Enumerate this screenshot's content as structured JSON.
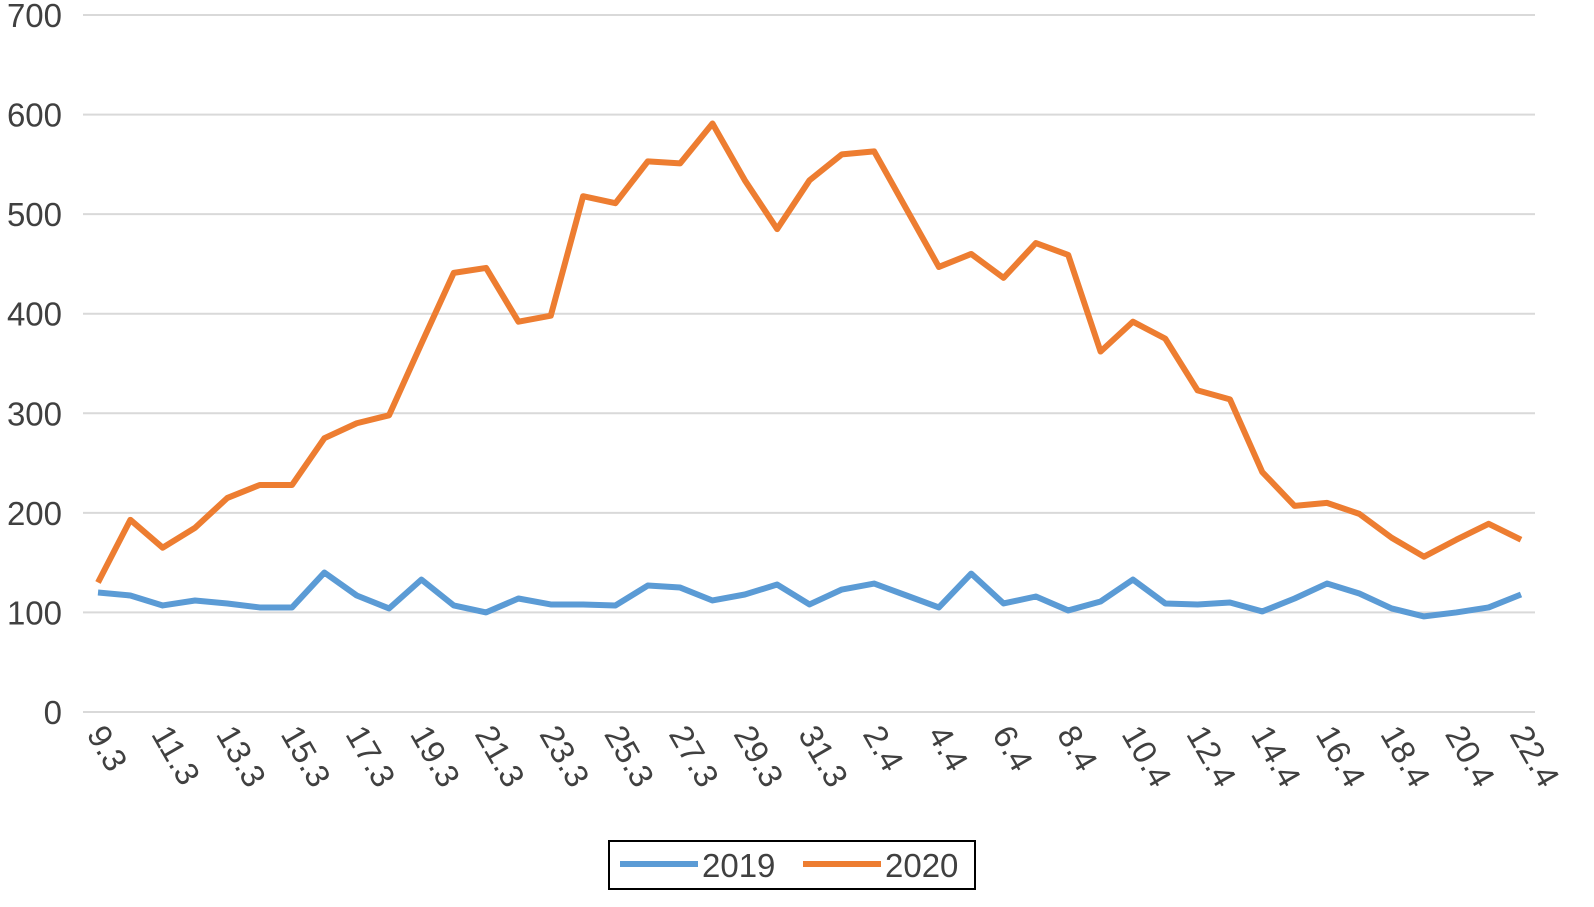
{
  "chart_data": {
    "type": "line",
    "categories": [
      "9.3",
      null,
      "11.3",
      null,
      "13.3",
      null,
      "15.3",
      null,
      "17.3",
      null,
      "19.3",
      null,
      "21.3",
      null,
      "23.3",
      null,
      "25.3",
      null,
      "27.3",
      null,
      "29.3",
      null,
      "31.3",
      null,
      "2.4",
      null,
      "4.4",
      null,
      "6.4",
      null,
      "8.4",
      null,
      "10.4",
      null,
      "12.4",
      null,
      "14.4",
      null,
      "16.4",
      null,
      "18.4",
      null,
      "20.4",
      null,
      "22.4"
    ],
    "series": [
      {
        "name": "2019",
        "color": "#5b9bd5",
        "values": [
          120,
          117,
          107,
          112,
          109,
          105,
          105,
          140,
          117,
          104,
          133,
          107,
          100,
          114,
          108,
          108,
          107,
          127,
          125,
          112,
          118,
          128,
          108,
          123,
          129,
          117,
          105,
          139,
          109,
          116,
          102,
          111,
          133,
          109,
          108,
          110,
          101,
          114,
          129,
          119,
          104,
          96,
          100,
          105,
          118
        ]
      },
      {
        "name": "2020",
        "color": "#ed7d31",
        "values": [
          130,
          193,
          165,
          185,
          215,
          228,
          228,
          275,
          290,
          298,
          370,
          441,
          446,
          392,
          398,
          518,
          511,
          553,
          551,
          591,
          534,
          485,
          534,
          560,
          563,
          505,
          447,
          460,
          436,
          471,
          459,
          362,
          392,
          375,
          323,
          314,
          241,
          207,
          210,
          199,
          175,
          156,
          173,
          189,
          173
        ]
      }
    ],
    "ylim": [
      0,
      700
    ],
    "yticks": [
      0,
      100,
      200,
      300,
      400,
      500,
      600,
      700
    ],
    "grid": true,
    "legend": "bottom"
  }
}
